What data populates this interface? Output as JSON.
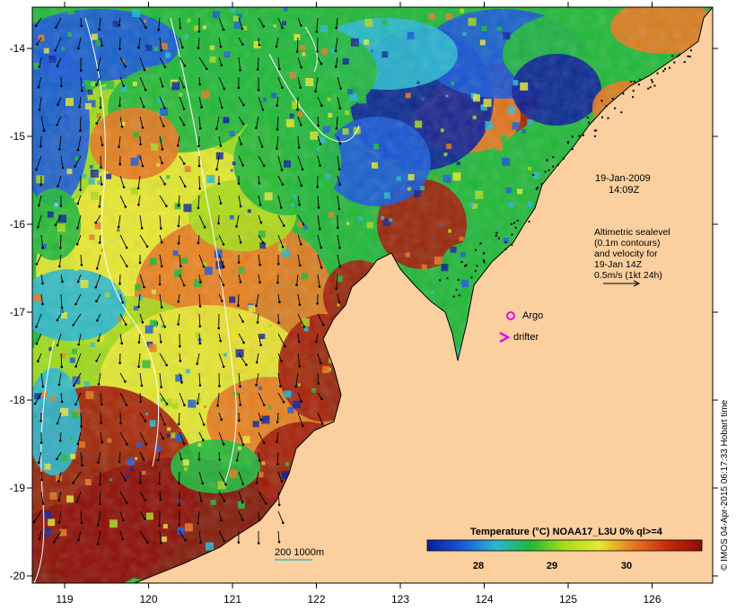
{
  "map": {
    "lon_ticks": [
      "119",
      "120",
      "121",
      "122",
      "123",
      "124",
      "125",
      "126"
    ],
    "lat_ticks": [
      "-14",
      "-15",
      "-16",
      "-17",
      "-18",
      "-19",
      "-20"
    ],
    "colors": {
      "land": "#fccf9e",
      "warm": "#a31a08",
      "hot": "#8c0d05",
      "orange": "#e8781e",
      "yellow": "#e8e830",
      "lime": "#a8dc18",
      "green": "#20b838",
      "cyan": "#28b8d0",
      "blue": "#1858d8",
      "navy": "#0a1e98",
      "contour": "#ffffff",
      "arrow": "#000000"
    }
  },
  "annotations": {
    "date_line1": "19-Jan-2009",
    "date_line2": "14:09Z",
    "altimetry": [
      "Altimetric sealevel",
      "(0.1m contours)",
      "and velocity for",
      "19-Jan 14Z",
      "0.5m/s (1kt 24h)"
    ],
    "argo_label": "Argo",
    "argo_color": "#e010e0",
    "drifter_label": "drifter",
    "drifter_color": "#e010e0",
    "depth_label": "200  1000m",
    "depth_color": "#30c0c0"
  },
  "colorbar": {
    "title": "Temperature (°C) NOAA17_L3U 0% ql>=4",
    "ticks": [
      "28",
      "29",
      "30"
    ],
    "stops": [
      "#0a1e98",
      "#1858d8",
      "#28b8d0",
      "#20b838",
      "#a8dc18",
      "#e8e830",
      "#e8781e",
      "#c82a0c",
      "#8c0d05"
    ]
  },
  "credit": "© IMOS 04-Apr-2015 06:17:33 Hobart time"
}
